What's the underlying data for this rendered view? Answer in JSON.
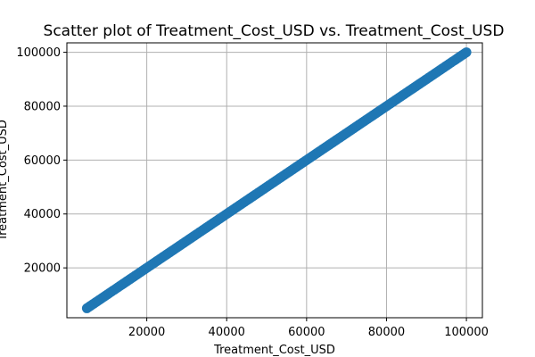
{
  "chart_data": {
    "type": "scatter",
    "title": "Scatter plot of Treatment_Cost_USD vs. Treatment_Cost_USD",
    "xlabel": "Treatment_Cost_USD",
    "ylabel": "Treatment_Cost_USD",
    "xlim": [
      0,
      104000
    ],
    "ylim": [
      1500,
      103500
    ],
    "x_ticks": [
      20000,
      40000,
      60000,
      80000,
      100000
    ],
    "y_ticks": [
      20000,
      40000,
      60000,
      80000,
      100000
    ],
    "x_tick_labels": [
      "20000",
      "40000",
      "60000",
      "80000",
      "100000"
    ],
    "y_tick_labels": [
      "20000",
      "40000",
      "60000",
      "80000",
      "100000"
    ],
    "grid": true,
    "legend": "none",
    "series": [
      {
        "color": "#1f77b4",
        "x_range": [
          5000,
          100000
        ],
        "y_range": [
          5000,
          100000
        ],
        "relation": "y = x"
      }
    ]
  }
}
